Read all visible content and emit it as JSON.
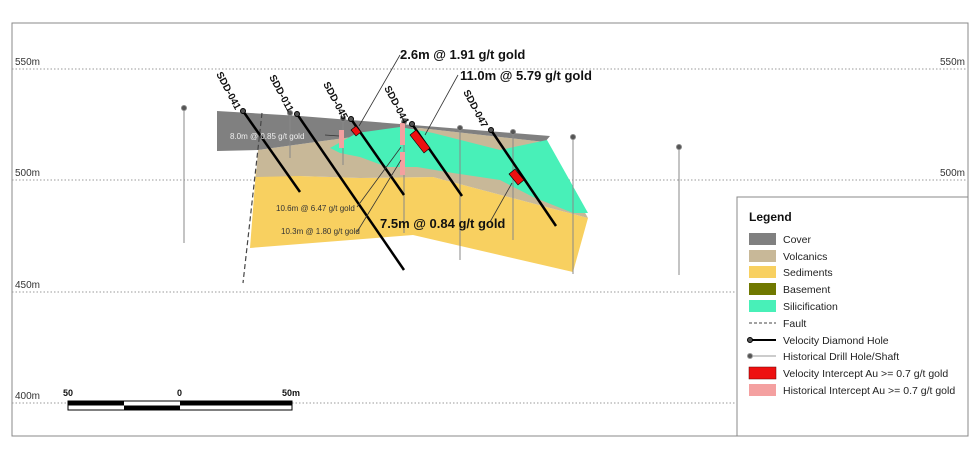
{
  "elevations": [
    {
      "label": "550m",
      "value": 550
    },
    {
      "label": "500m",
      "value": 500
    },
    {
      "label": "450m",
      "value": 450
    },
    {
      "label": "400m",
      "value": 400
    }
  ],
  "holes": [
    {
      "name": "SDD-041"
    },
    {
      "name": "SDD-011"
    },
    {
      "name": "SDD-045"
    },
    {
      "name": "SDD-044"
    },
    {
      "name": "SDD-047"
    }
  ],
  "intercepts": {
    "major": [
      "2.6m @ 1.91 g/t gold",
      "11.0m @ 5.79 g/t gold",
      "7.5m @ 0.84 g/t gold"
    ],
    "historical": [
      "8.0m @ 0.85 g/t gold",
      "10.6m @ 6.47 g/t gold",
      "10.3m @ 1.80 g/t gold"
    ]
  },
  "scale": {
    "left": "50",
    "middle": "0",
    "right": "50m"
  },
  "legend": {
    "title": "Legend",
    "items": [
      {
        "label": "Cover",
        "color": "#808080"
      },
      {
        "label": "Volcanics",
        "color": "#c8b898"
      },
      {
        "label": "Sediments",
        "color": "#f8d060"
      },
      {
        "label": "Basement",
        "color": "#707800"
      },
      {
        "label": "Silicification",
        "color": "#48f0b8"
      },
      {
        "label": "Fault"
      },
      {
        "label": "Velocity Diamond Hole"
      },
      {
        "label": "Historical Drill Hole/Shaft"
      },
      {
        "label": "Velocity Intercept Au >= 0.7 g/t gold",
        "color": "#ee1010"
      },
      {
        "label": "Historical Intercept Au >= 0.7 g/t gold",
        "color": "#f4a0a0"
      }
    ]
  }
}
